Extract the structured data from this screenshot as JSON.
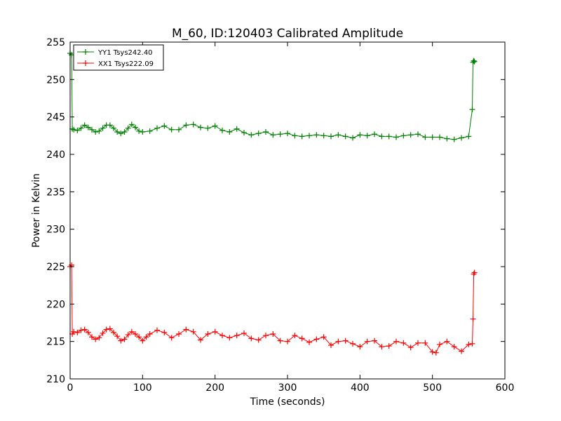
{
  "chart_data": {
    "type": "line",
    "title": "M_60, ID:120403 Calibrated Amplitude",
    "xlabel": "Time (seconds)",
    "ylabel": "Power in Kelvin",
    "xlim": [
      0,
      600
    ],
    "ylim": [
      210,
      255
    ],
    "x_ticks": [
      0,
      100,
      200,
      300,
      400,
      500,
      600
    ],
    "y_ticks": [
      210,
      215,
      220,
      225,
      230,
      235,
      240,
      245,
      250,
      255
    ],
    "grid": false,
    "legend_position": "top-left",
    "marker": "+",
    "series": [
      {
        "name": "YY1 Tsys242.40",
        "color": "#008000",
        "x": [
          0,
          2,
          3,
          5,
          10,
          15,
          20,
          25,
          30,
          35,
          40,
          45,
          50,
          55,
          60,
          65,
          70,
          75,
          80,
          85,
          90,
          95,
          100,
          110,
          120,
          130,
          140,
          150,
          160,
          170,
          180,
          190,
          200,
          210,
          220,
          230,
          240,
          250,
          260,
          270,
          280,
          290,
          300,
          310,
          320,
          330,
          340,
          350,
          360,
          370,
          380,
          390,
          400,
          410,
          420,
          430,
          440,
          450,
          460,
          470,
          480,
          490,
          500,
          510,
          520,
          530,
          540,
          550,
          555,
          556,
          557,
          558
        ],
        "y": [
          253.5,
          253.3,
          243.4,
          243.3,
          243.2,
          243.5,
          243.9,
          243.6,
          243.3,
          243.0,
          243.1,
          243.5,
          243.9,
          243.9,
          243.5,
          243.0,
          242.8,
          243.0,
          243.5,
          244.0,
          243.6,
          243.1,
          243.0,
          243.1,
          243.5,
          243.8,
          243.3,
          243.3,
          243.9,
          244.0,
          243.6,
          243.5,
          243.8,
          243.2,
          243.0,
          243.4,
          242.9,
          242.6,
          242.8,
          243.0,
          242.6,
          242.7,
          242.8,
          242.5,
          242.4,
          242.5,
          242.6,
          242.5,
          242.4,
          242.6,
          242.4,
          242.2,
          242.6,
          242.5,
          242.7,
          242.4,
          242.4,
          242.3,
          242.5,
          242.6,
          242.7,
          242.3,
          242.3,
          242.3,
          242.1,
          242.0,
          242.2,
          242.4,
          246.0,
          252.3,
          252.5,
          252.4
        ]
      },
      {
        "name": "XX1 Tsys222.09",
        "color": "#ff0000",
        "x": [
          0,
          2,
          3,
          5,
          10,
          15,
          20,
          25,
          30,
          35,
          40,
          45,
          50,
          55,
          60,
          65,
          70,
          75,
          80,
          85,
          90,
          95,
          100,
          105,
          110,
          120,
          130,
          140,
          150,
          160,
          170,
          180,
          190,
          200,
          210,
          220,
          230,
          240,
          250,
          260,
          270,
          280,
          290,
          300,
          310,
          320,
          330,
          340,
          350,
          360,
          370,
          380,
          390,
          400,
          410,
          420,
          430,
          440,
          450,
          460,
          470,
          480,
          490,
          500,
          505,
          510,
          520,
          530,
          540,
          550,
          555,
          556,
          557,
          558
        ],
        "y": [
          225.0,
          225.2,
          216.0,
          216.3,
          216.2,
          216.5,
          216.6,
          216.2,
          215.6,
          215.3,
          215.5,
          216.1,
          216.6,
          216.7,
          216.2,
          215.7,
          215.1,
          215.3,
          215.9,
          216.3,
          216.0,
          215.6,
          215.1,
          215.6,
          216.0,
          216.5,
          216.2,
          215.5,
          216.0,
          216.6,
          216.3,
          215.2,
          216.0,
          216.3,
          215.8,
          215.5,
          215.8,
          216.1,
          215.4,
          215.2,
          215.8,
          216.0,
          215.1,
          215.0,
          215.8,
          215.4,
          214.9,
          215.3,
          215.6,
          214.5,
          215.0,
          215.1,
          214.7,
          214.3,
          215.0,
          215.1,
          214.3,
          214.4,
          215.0,
          214.8,
          214.2,
          214.8,
          214.8,
          213.6,
          213.5,
          214.6,
          215.0,
          214.3,
          213.7,
          214.6,
          214.7,
          218.0,
          224.0,
          224.2
        ]
      }
    ]
  }
}
